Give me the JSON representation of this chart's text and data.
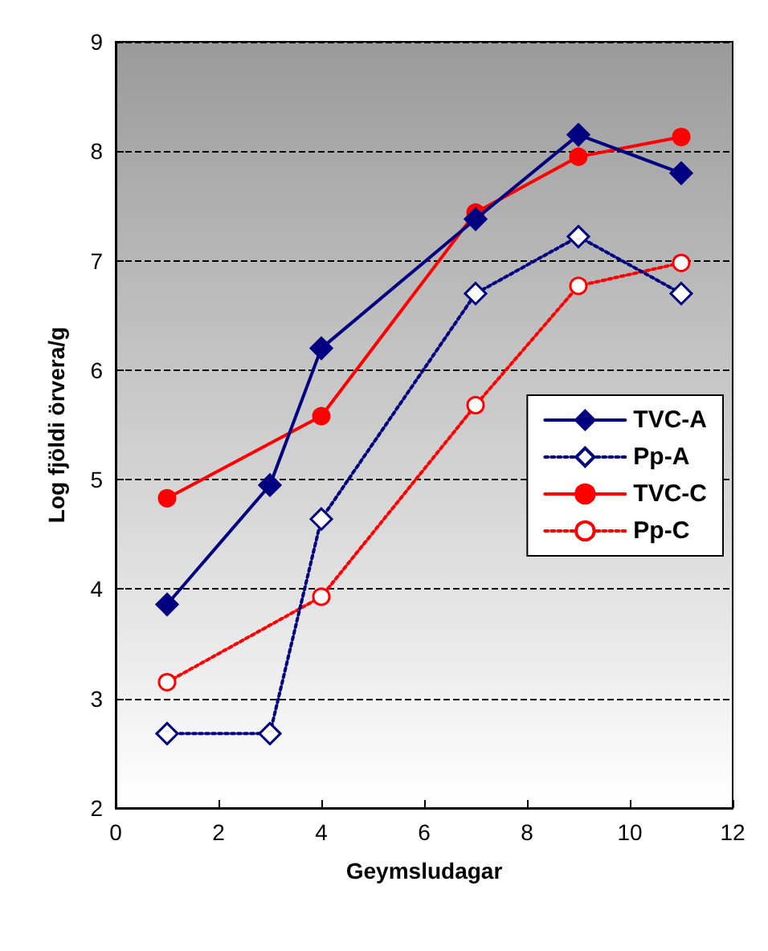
{
  "chart_data": {
    "type": "line",
    "xlabel": "Geymsludagar",
    "ylabel": "Log fjöldi örvera/g",
    "xlim": [
      0,
      12
    ],
    "xticks": [
      0,
      2,
      4,
      6,
      8,
      10,
      12
    ],
    "ylim": [
      2,
      9
    ],
    "yticks": [
      2,
      3,
      4,
      5,
      6,
      7,
      8,
      9
    ],
    "grid": "y",
    "legend": "right",
    "series": [
      {
        "name": "TVC-A",
        "color": "#000080",
        "marker": "diamond",
        "line_style": "solid",
        "x": [
          1,
          3,
          4,
          7,
          9,
          11
        ],
        "values": [
          3.86,
          4.95,
          6.2,
          7.38,
          8.15,
          7.8
        ]
      },
      {
        "name": "Pp-A",
        "color": "#000080",
        "marker": "diamond",
        "line_style": "dotted",
        "x": [
          1,
          3,
          4,
          7,
          9,
          11
        ],
        "values": [
          2.68,
          2.68,
          4.64,
          6.7,
          7.22,
          6.7
        ]
      },
      {
        "name": "TVC-C",
        "color": "#ff0000",
        "marker": "circle",
        "line_style": "solid",
        "x": [
          1,
          4,
          7,
          9,
          11
        ],
        "values": [
          4.83,
          5.58,
          7.44,
          7.95,
          8.13
        ]
      },
      {
        "name": "Pp-C",
        "color": "#ff0000",
        "marker": "circle",
        "line_style": "dotted",
        "x": [
          1,
          4,
          7,
          9,
          11
        ],
        "values": [
          3.15,
          3.93,
          5.68,
          6.77,
          6.98
        ]
      }
    ]
  }
}
